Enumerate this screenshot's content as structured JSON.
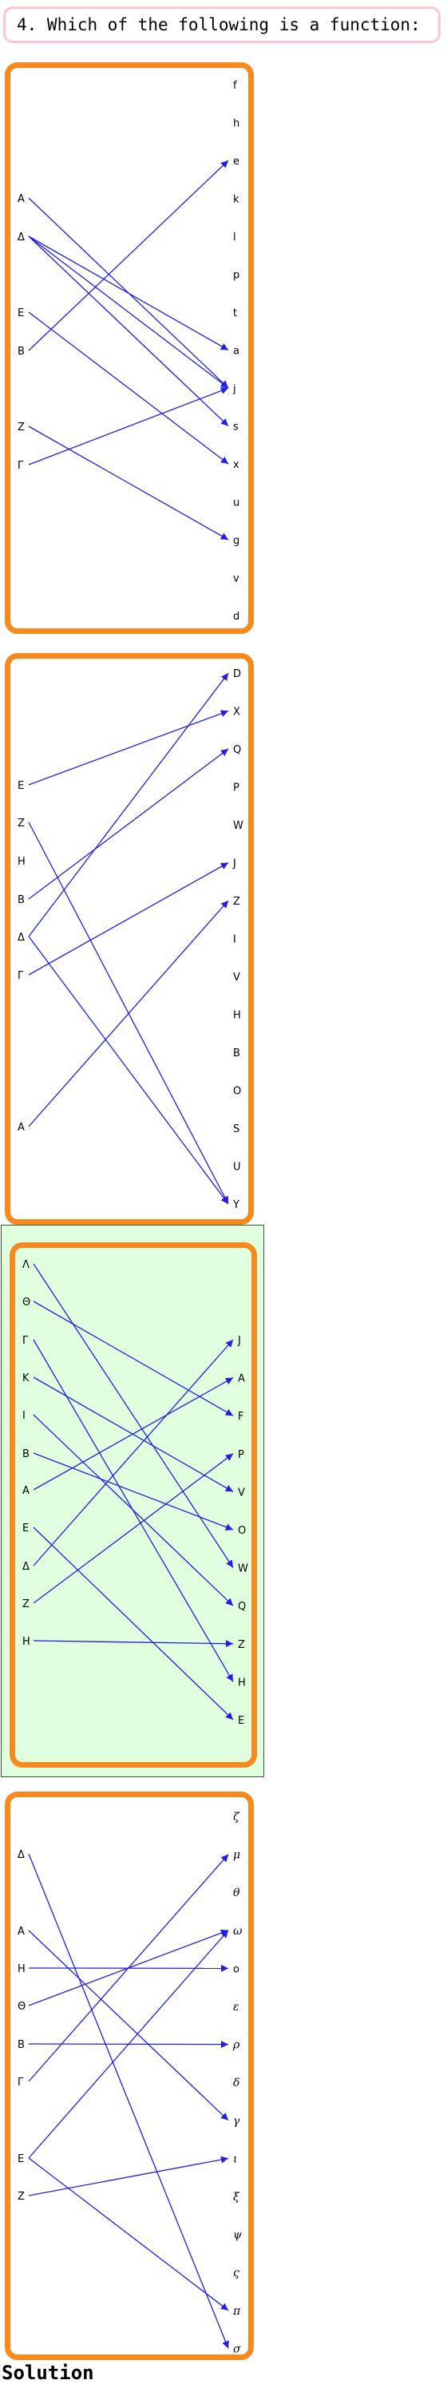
{
  "question": "4. Which of the following is a function:",
  "solution_label": "Solution",
  "highlight_color": "#dfffdf",
  "panel_border_color": "#f68a1e",
  "arrow_color": "#1f1fe8",
  "diagrams": [
    {
      "left": [
        "A",
        "Δ",
        "E",
        "B",
        "Z",
        "Γ"
      ],
      "right": [
        "f",
        "h",
        "e",
        "k",
        "l",
        "p",
        "t",
        "a",
        "j",
        "s",
        "x",
        "u",
        "g",
        "v",
        "d"
      ],
      "mappings": [
        [
          "A",
          "j"
        ],
        [
          "Δ",
          "a"
        ],
        [
          "Δ",
          "j"
        ],
        [
          "Δ",
          "s"
        ],
        [
          "E",
          "x"
        ],
        [
          "B",
          "e"
        ],
        [
          "Z",
          "g"
        ],
        [
          "Γ",
          "j"
        ]
      ]
    },
    {
      "left": [
        "E",
        "Z",
        "H",
        "B",
        "Δ",
        "Γ",
        "A"
      ],
      "right": [
        "D",
        "X",
        "Q",
        "P",
        "W",
        "J",
        "Z",
        "I",
        "V",
        "H",
        "B",
        "O",
        "S",
        "U",
        "Y"
      ],
      "mappings": [
        [
          "E",
          "X"
        ],
        [
          "Z",
          "Y"
        ],
        [
          "B",
          "Q"
        ],
        [
          "Δ",
          "D"
        ],
        [
          "Δ",
          "Y"
        ],
        [
          "Γ",
          "J"
        ],
        [
          "A",
          "Z"
        ]
      ]
    },
    {
      "highlighted": true,
      "left": [
        "Λ",
        "Θ",
        "Γ",
        "K",
        "I",
        "B",
        "A",
        "E",
        "Δ",
        "Z",
        "H"
      ],
      "right": [
        "J",
        "A",
        "F",
        "P",
        "V",
        "O",
        "W",
        "Q",
        "Z",
        "H",
        "E"
      ],
      "mappings": [
        [
          "Λ",
          "W"
        ],
        [
          "Θ",
          "F"
        ],
        [
          "Γ",
          "H"
        ],
        [
          "K",
          "V"
        ],
        [
          "I",
          "Q"
        ],
        [
          "B",
          "O"
        ],
        [
          "A",
          "A"
        ],
        [
          "E",
          "E"
        ],
        [
          "Δ",
          "J"
        ],
        [
          "Z",
          "P"
        ],
        [
          "H",
          "Z"
        ]
      ]
    },
    {
      "left": [
        "Δ",
        "A",
        "H",
        "Θ",
        "B",
        "Γ",
        "E",
        "Z"
      ],
      "right": [
        "ζ",
        "μ",
        "θ",
        "ω",
        "o",
        "ε",
        "ρ",
        "δ",
        "γ",
        "ι",
        "ξ",
        "ψ",
        "ς",
        "π",
        "σ"
      ],
      "mappings": [
        [
          "Δ",
          "σ"
        ],
        [
          "A",
          "γ"
        ],
        [
          "H",
          "o"
        ],
        [
          "Θ",
          "ω"
        ],
        [
          "B",
          "ρ"
        ],
        [
          "Γ",
          "μ"
        ],
        [
          "E",
          "ω"
        ],
        [
          "E",
          "π"
        ],
        [
          "Z",
          "ι"
        ]
      ]
    }
  ]
}
